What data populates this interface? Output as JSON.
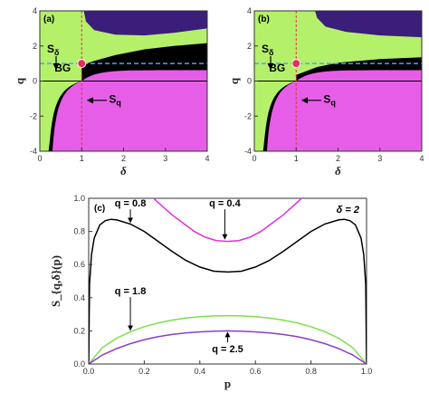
{
  "chart_data": [
    {
      "type": "heatmap",
      "panel_label": "(a)",
      "xlabel": "δ",
      "ylabel": "q",
      "xlim": [
        0,
        4
      ],
      "ylim": [
        -4,
        4
      ],
      "xticks": [
        "0",
        "1",
        "2",
        "3",
        "4"
      ],
      "yticks": [
        "-4",
        "-2",
        "0",
        "2",
        "4"
      ],
      "regions": [
        {
          "label": "S_δ",
          "color": "#b5f06a"
        },
        {
          "label": "S_q",
          "color": "#e65ee8"
        },
        {
          "label": "",
          "color": "#000000"
        },
        {
          "label": "",
          "color": "#3a1e7a"
        }
      ],
      "annotations": {
        "bg_label": "BG",
        "s_delta": "S",
        "s_delta_sub": "δ",
        "s_q": "S",
        "s_q_sub": "q"
      },
      "bg_point": {
        "x": 1.0,
        "y": 1.0
      },
      "reference_lines": {
        "vertical_x": 1.0,
        "horizontal_y": 1.0
      },
      "dark_boundary": [
        [
          1.0,
          1.0
        ],
        [
          1.3,
          1.45
        ],
        [
          1.8,
          2.05
        ],
        [
          2.5,
          2.65
        ],
        [
          3.2,
          3.0
        ],
        [
          4.0,
          3.3
        ]
      ]
    },
    {
      "type": "heatmap",
      "panel_label": "(b)",
      "xlabel": "δ",
      "ylabel": "q",
      "xlim": [
        0,
        4
      ],
      "ylim": [
        -4,
        4
      ],
      "xticks": [
        "0",
        "1",
        "2",
        "3",
        "4"
      ],
      "yticks": [
        "-4",
        "-2",
        "0",
        "2",
        "4"
      ],
      "regions": [
        {
          "label": "S_δ",
          "color": "#b5f06a"
        },
        {
          "label": "S_q",
          "color": "#e65ee8"
        },
        {
          "label": "",
          "color": "#000000"
        },
        {
          "label": "",
          "color": "#3a1e7a"
        }
      ],
      "annotations": {
        "bg_label": "BG",
        "s_delta": "S",
        "s_delta_sub": "δ",
        "s_q": "S",
        "s_q_sub": "q"
      },
      "bg_point": {
        "x": 1.0,
        "y": 1.0
      },
      "reference_lines": {
        "vertical_x": 1.0,
        "horizontal_y": 1.0
      },
      "dark_boundary": [
        [
          1.3,
          4.0
        ],
        [
          1.5,
          3.2
        ],
        [
          2.0,
          2.65
        ],
        [
          3.0,
          2.3
        ],
        [
          4.0,
          2.1
        ]
      ]
    },
    {
      "type": "line",
      "panel_label": "(c)",
      "xlabel": "p",
      "ylabel": "S_{q,δ}(p)",
      "xlim": [
        0,
        1
      ],
      "ylim": [
        0,
        1.0
      ],
      "xticks": [
        "0.0",
        "0.2",
        "0.4",
        "0.6",
        "0.8",
        "1.0"
      ],
      "yticks": [
        "0.0",
        "0.2",
        "0.4",
        "0.6",
        "0.8",
        "1.0"
      ],
      "parameter_label": "δ = 2",
      "series": [
        {
          "name": "q = 0.8",
          "color": "#000000",
          "x": [
            0.0,
            0.003,
            0.01,
            0.02,
            0.04,
            0.06,
            0.08,
            0.1,
            0.15,
            0.2,
            0.25,
            0.3,
            0.35,
            0.4,
            0.45,
            0.5,
            0.55,
            0.6,
            0.65,
            0.7,
            0.75,
            0.8,
            0.85,
            0.9,
            0.92,
            0.94,
            0.96,
            0.98,
            0.99,
            0.997,
            1.0
          ],
          "y": [
            0.0,
            0.48,
            0.66,
            0.76,
            0.84,
            0.865,
            0.873,
            0.87,
            0.845,
            0.8,
            0.74,
            0.68,
            0.625,
            0.585,
            0.56,
            0.555,
            0.56,
            0.585,
            0.625,
            0.68,
            0.74,
            0.8,
            0.845,
            0.87,
            0.873,
            0.865,
            0.84,
            0.76,
            0.66,
            0.48,
            0.0
          ]
        },
        {
          "name": "q = 0.4",
          "color": "#e030d8",
          "x": [
            0.22,
            0.26,
            0.3,
            0.34,
            0.38,
            0.42,
            0.46,
            0.5,
            0.54,
            0.58,
            0.62,
            0.66,
            0.7,
            0.74,
            0.78
          ],
          "y": [
            1.02,
            0.96,
            0.9,
            0.85,
            0.8,
            0.765,
            0.745,
            0.74,
            0.745,
            0.765,
            0.8,
            0.85,
            0.9,
            0.96,
            1.02
          ]
        },
        {
          "name": "q = 1.8",
          "color": "#7de04a",
          "x": [
            0.0,
            0.05,
            0.1,
            0.15,
            0.2,
            0.25,
            0.3,
            0.35,
            0.4,
            0.45,
            0.5,
            0.55,
            0.6,
            0.65,
            0.7,
            0.75,
            0.8,
            0.85,
            0.9,
            0.95,
            1.0
          ],
          "y": [
            0.0,
            0.1,
            0.155,
            0.195,
            0.225,
            0.248,
            0.265,
            0.277,
            0.285,
            0.29,
            0.292,
            0.29,
            0.285,
            0.277,
            0.265,
            0.248,
            0.225,
            0.195,
            0.155,
            0.1,
            0.0
          ]
        },
        {
          "name": "q = 2.5",
          "color": "#8a3ec8",
          "x": [
            0.0,
            0.05,
            0.1,
            0.15,
            0.2,
            0.25,
            0.3,
            0.35,
            0.4,
            0.45,
            0.5,
            0.55,
            0.6,
            0.65,
            0.7,
            0.75,
            0.8,
            0.85,
            0.9,
            0.95,
            1.0
          ],
          "y": [
            0.0,
            0.055,
            0.093,
            0.123,
            0.147,
            0.165,
            0.178,
            0.188,
            0.194,
            0.198,
            0.2,
            0.198,
            0.194,
            0.188,
            0.178,
            0.165,
            0.147,
            0.123,
            0.093,
            0.055,
            0.0
          ]
        }
      ],
      "curve_labels": [
        {
          "text": "q = 0.8",
          "x": 0.15,
          "y": 0.95,
          "arrow_to": [
            0.15,
            0.845
          ]
        },
        {
          "text": "q = 0.4",
          "x": 0.49,
          "y": 0.95,
          "arrow_to": [
            0.49,
            0.745
          ]
        },
        {
          "text": "q = 1.8",
          "x": 0.15,
          "y": 0.42,
          "arrow_to": [
            0.15,
            0.195
          ]
        },
        {
          "text": "q = 2.5",
          "x": 0.5,
          "y": 0.07,
          "arrow_to": [
            0.5,
            0.2
          ]
        }
      ]
    }
  ]
}
